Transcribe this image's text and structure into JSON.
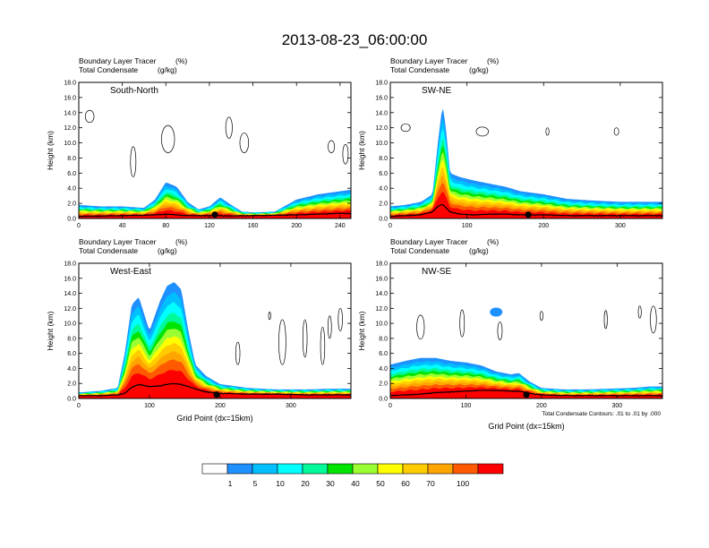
{
  "figure_title": "2013-08-23_06:00:00",
  "panel_header": {
    "line1": "Boundary Layer Tracer",
    "unit1": "(%)",
    "line2": "Total Condensate",
    "unit2": "(g/kg)"
  },
  "contour_note": "Total Condensate Contours: .01 to .01 by .000",
  "colors": {
    "levels": [
      "#ffffff",
      "#1e90ff",
      "#00bfff",
      "#00ffff",
      "#00fa9a",
      "#00e400",
      "#9aff32",
      "#ffff00",
      "#ffcc00",
      "#ffa500",
      "#ff5a00",
      "#ff0000"
    ],
    "terrain": "#000000",
    "contour": "#000000"
  },
  "colorbar": {
    "labels": [
      "1",
      "5",
      "10",
      "20",
      "30",
      "40",
      "50",
      "60",
      "70",
      "100"
    ]
  },
  "chart_data": [
    {
      "type": "heatmap",
      "name": "South-North",
      "ylabel": "Height (km)",
      "xlabel": "",
      "xlim": [
        0,
        250
      ],
      "ylim": [
        0,
        18
      ],
      "xticks": [
        0,
        40,
        80,
        120,
        160,
        200,
        240
      ],
      "yticks": [
        0,
        2,
        4,
        6,
        8,
        10,
        12,
        14,
        16,
        18
      ],
      "ytick_labels": [
        "0.0",
        "2.0",
        "4.0",
        "6.0",
        "8.0",
        "10.0",
        "12.0",
        "14.0",
        "16.0",
        "18.0"
      ],
      "marker_x": 125,
      "tracer_envelope": {
        "x": [
          0,
          20,
          40,
          60,
          70,
          80,
          90,
          100,
          110,
          120,
          130,
          140,
          150,
          160,
          180,
          200,
          220,
          240,
          250
        ],
        "top_km": [
          1.8,
          1.6,
          1.6,
          1.4,
          2.5,
          4.8,
          4.2,
          2.2,
          1.2,
          1.6,
          2.8,
          1.8,
          0.9,
          0.8,
          0.9,
          2.5,
          3.2,
          3.6,
          3.8
        ]
      },
      "terrain_km": [
        0.2,
        0.25,
        0.3,
        0.35,
        0.4,
        0.5,
        0.4,
        0.3,
        0.3,
        0.3,
        0.3,
        0.25,
        0.3,
        0.3,
        0.35,
        0.4,
        0.5,
        0.6,
        0.6
      ],
      "cloud_contours": [
        {
          "x": 10,
          "z": 13.5,
          "rx": 4,
          "rz": 0.8
        },
        {
          "x": 82,
          "z": 10.5,
          "rx": 6,
          "rz": 1.8
        },
        {
          "x": 50,
          "z": 7.5,
          "rx": 2.5,
          "rz": 2.0
        },
        {
          "x": 138,
          "z": 12.0,
          "rx": 3,
          "rz": 1.4
        },
        {
          "x": 152,
          "z": 10.0,
          "rx": 4,
          "rz": 1.3
        },
        {
          "x": 232,
          "z": 9.5,
          "rx": 3,
          "rz": 0.8
        },
        {
          "x": 245,
          "z": 8.5,
          "rx": 2.5,
          "rz": 1.3
        }
      ]
    },
    {
      "type": "heatmap",
      "name": "SW-NE",
      "ylabel": "Height (km)",
      "xlabel": "",
      "xlim": [
        0,
        355
      ],
      "ylim": [
        0,
        18
      ],
      "xticks": [
        0,
        100,
        200,
        300
      ],
      "yticks": [
        0,
        2,
        4,
        6,
        8,
        10,
        12,
        14,
        16,
        18
      ],
      "ytick_labels": [
        "0.0",
        "2.0",
        "4.0",
        "6.0",
        "8.0",
        "10.0",
        "12.0",
        "14.0",
        "16.0",
        "18.0"
      ],
      "marker_x": 180,
      "tracer_envelope": {
        "x": [
          0,
          20,
          40,
          55,
          62,
          68,
          72,
          78,
          90,
          110,
          130,
          150,
          170,
          200,
          230,
          260,
          300,
          330,
          355
        ],
        "top_km": [
          1.6,
          1.8,
          2.2,
          3.2,
          10.0,
          15.0,
          12.5,
          6.0,
          5.5,
          5.0,
          4.6,
          4.2,
          3.6,
          3.2,
          2.6,
          2.4,
          2.2,
          2.2,
          2.2
        ]
      },
      "terrain_km": [
        0.2,
        0.3,
        0.4,
        0.8,
        1.5,
        1.8,
        1.4,
        0.8,
        0.5,
        0.4,
        0.5,
        0.5,
        0.4,
        0.4,
        0.3,
        0.3,
        0.3,
        0.3,
        0.3
      ],
      "cloud_contours": [
        {
          "x": 20,
          "z": 12.0,
          "rx": 6,
          "rz": 0.5
        },
        {
          "x": 120,
          "z": 11.5,
          "rx": 8,
          "rz": 0.6
        },
        {
          "x": 205,
          "z": 11.5,
          "rx": 2,
          "rz": 0.5
        },
        {
          "x": 295,
          "z": 11.5,
          "rx": 3,
          "rz": 0.5
        }
      ]
    },
    {
      "type": "heatmap",
      "name": "West-East",
      "ylabel": "Height (km)",
      "xlabel": "Grid Point (dx=15km)",
      "xlim": [
        0,
        385
      ],
      "ylim": [
        0,
        18
      ],
      "xticks": [
        0,
        100,
        200,
        300
      ],
      "yticks": [
        0,
        2,
        4,
        6,
        8,
        10,
        12,
        14,
        16,
        18
      ],
      "ytick_labels": [
        "0.0",
        "2.0",
        "4.0",
        "6.0",
        "8.0",
        "10.0",
        "12.0",
        "14.0",
        "16.0",
        "18.0"
      ],
      "marker_x": 195,
      "tracer_envelope": {
        "x": [
          0,
          30,
          55,
          65,
          75,
          85,
          100,
          115,
          125,
          135,
          145,
          155,
          165,
          180,
          200,
          240,
          280,
          320,
          360,
          385
        ],
        "top_km": [
          0.8,
          1.0,
          1.4,
          6.0,
          12.5,
          13.5,
          9.0,
          13.0,
          15.0,
          15.5,
          14.5,
          9.0,
          4.5,
          3.0,
          1.9,
          1.4,
          1.2,
          1.2,
          1.3,
          1.3
        ]
      },
      "terrain_km": [
        0.3,
        0.3,
        0.4,
        0.6,
        1.4,
        1.8,
        1.5,
        1.6,
        1.8,
        1.9,
        1.8,
        1.5,
        1.2,
        0.8,
        0.6,
        0.5,
        0.5,
        0.4,
        0.4,
        0.4
      ],
      "cloud_contours": [
        {
          "x": 225,
          "z": 6.0,
          "rx": 3,
          "rz": 1.5
        },
        {
          "x": 270,
          "z": 11.0,
          "rx": 1.5,
          "rz": 0.5
        },
        {
          "x": 288,
          "z": 7.5,
          "rx": 5,
          "rz": 3.0
        },
        {
          "x": 320,
          "z": 8.0,
          "rx": 3,
          "rz": 2.5
        },
        {
          "x": 345,
          "z": 7.0,
          "rx": 3,
          "rz": 2.5
        },
        {
          "x": 355,
          "z": 9.5,
          "rx": 2.5,
          "rz": 1.5
        },
        {
          "x": 370,
          "z": 10.5,
          "rx": 3,
          "rz": 1.5
        }
      ]
    },
    {
      "type": "heatmap",
      "name": "NW-SE",
      "ylabel": "Height (km)",
      "xlabel": "Grid Point (dx=15km)",
      "xlim": [
        0,
        360
      ],
      "ylim": [
        0,
        18
      ],
      "xticks": [
        0,
        100,
        200,
        300
      ],
      "yticks": [
        0,
        2,
        4,
        6,
        8,
        10,
        12,
        14,
        16,
        18
      ],
      "ytick_labels": [
        "0.0",
        "2.0",
        "4.0",
        "6.0",
        "8.0",
        "10.0",
        "12.0",
        "14.0",
        "16.0",
        "18.0"
      ],
      "marker_x": 180,
      "tracer_envelope": {
        "x": [
          0,
          20,
          40,
          60,
          80,
          100,
          120,
          140,
          160,
          170,
          185,
          200,
          230,
          260,
          290,
          320,
          345,
          360
        ],
        "top_km": [
          4.5,
          5.0,
          5.4,
          5.4,
          5.0,
          4.8,
          4.4,
          3.6,
          3.2,
          3.4,
          2.2,
          1.4,
          1.2,
          1.2,
          1.3,
          1.4,
          1.6,
          1.6
        ]
      },
      "terrain_km": [
        0.3,
        0.4,
        0.5,
        0.7,
        0.8,
        0.9,
        1.0,
        1.0,
        0.9,
        0.9,
        0.6,
        0.4,
        0.3,
        0.3,
        0.3,
        0.3,
        0.3,
        0.3
      ],
      "blue_patch": {
        "x": 140,
        "z": 11.5
      },
      "cloud_contours": [
        {
          "x": 40,
          "z": 9.5,
          "rx": 5,
          "rz": 1.6
        },
        {
          "x": 95,
          "z": 10.0,
          "rx": 3,
          "rz": 1.8
        },
        {
          "x": 145,
          "z": 9.0,
          "rx": 3,
          "rz": 1.2
        },
        {
          "x": 200,
          "z": 11.0,
          "rx": 2,
          "rz": 0.6
        },
        {
          "x": 285,
          "z": 10.5,
          "rx": 2,
          "rz": 1.2
        },
        {
          "x": 330,
          "z": 11.5,
          "rx": 2,
          "rz": 0.8
        },
        {
          "x": 348,
          "z": 10.5,
          "rx": 4,
          "rz": 1.8
        }
      ]
    }
  ]
}
